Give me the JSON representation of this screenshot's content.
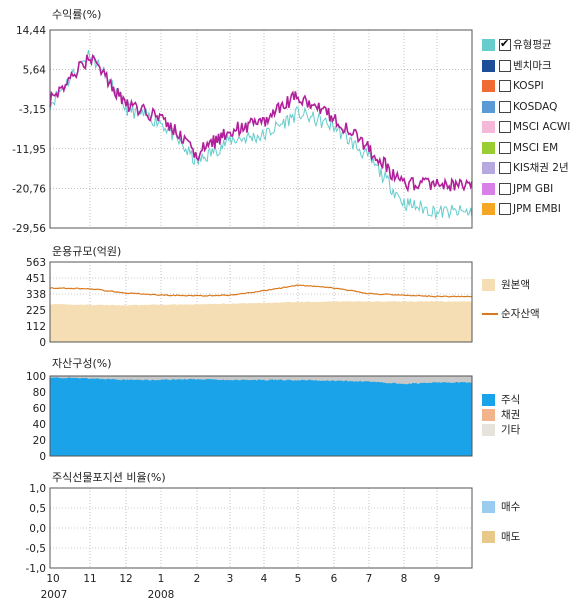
{
  "panel1": {
    "title": "수익률(%)",
    "yticks": [
      "14,44",
      "5,64",
      "-3,15",
      "-11,95",
      "-20,76",
      "-29,56"
    ]
  },
  "panel2": {
    "title": "운용규모(억원)",
    "yticks": [
      "563",
      "451",
      "338",
      "225",
      "112",
      "0"
    ]
  },
  "panel3": {
    "title": "자산구성(%)",
    "yticks": [
      "100",
      "80",
      "60",
      "40",
      "20",
      "0"
    ]
  },
  "panel4": {
    "title": "주식선물포지션 비율(%)",
    "yticks": [
      "1,0",
      "0,5",
      "0,0",
      "-0,5",
      "-1,0"
    ]
  },
  "xaxis": {
    "month_labels": [
      "10",
      "11",
      "12",
      "1",
      "2",
      "3",
      "4",
      "5",
      "6",
      "7",
      "8",
      "9"
    ],
    "year_labels": [
      "2007",
      "2008"
    ]
  },
  "legend1": [
    {
      "label": "유형평균",
      "color": "#66cccc",
      "checked": true
    },
    {
      "label": "벤치마크",
      "color": "#1f4e99",
      "checked": false
    },
    {
      "label": "KOSPI",
      "color": "#f06a33",
      "checked": false
    },
    {
      "label": "KOSDAQ",
      "color": "#5b9bd5",
      "checked": false
    },
    {
      "label": "MSCI ACWI",
      "color": "#f4b8d8",
      "checked": false
    },
    {
      "label": "MSCI EM",
      "color": "#9acd32",
      "checked": false
    },
    {
      "label": "KIS채권 2년",
      "color": "#b8a8e0",
      "checked": false
    },
    {
      "label": "JPM GBI",
      "color": "#d97fe8",
      "checked": false
    },
    {
      "label": "JPM EMBI",
      "color": "#f5a623",
      "checked": false
    }
  ],
  "legend2": [
    {
      "label": "원본액",
      "color": "#f5deb3",
      "kind": "box"
    },
    {
      "label": "순자산액",
      "color": "#d97a1e",
      "kind": "line"
    }
  ],
  "legend3": [
    {
      "label": "주식",
      "color": "#1aa3e8"
    },
    {
      "label": "채권",
      "color": "#f2b48a"
    },
    {
      "label": "기타",
      "color": "#e6e2dc"
    }
  ],
  "legend4": [
    {
      "label": "매수",
      "color": "#99ccee"
    },
    {
      "label": "매도",
      "color": "#e8c98a"
    }
  ],
  "chart_data": [
    {
      "type": "line",
      "title": "수익률(%)",
      "ylim": [
        -29.56,
        14.44
      ],
      "x": [
        "2007-10",
        "2007-11",
        "2007-12",
        "2008-01",
        "2008-02",
        "2008-03",
        "2008-04",
        "2008-05",
        "2008-06",
        "2008-07",
        "2008-08",
        "2008-09"
      ],
      "series": [
        {
          "name": "유형평균",
          "color": "#66cccc",
          "values": [
            -2,
            9.5,
            -3,
            -6,
            -15,
            -10,
            -9,
            -4,
            -7,
            -14,
            -24,
            -26
          ]
        },
        {
          "color": "#b0209a",
          "values": [
            -1,
            8.5,
            -2,
            -5,
            -13,
            -8,
            -6,
            0,
            -5,
            -12,
            -20,
            -20
          ]
        }
      ]
    },
    {
      "type": "area",
      "title": "운용규모(억원)",
      "ylim": [
        0,
        563
      ],
      "x": [
        "2007-10",
        "2007-11",
        "2007-12",
        "2008-01",
        "2008-02",
        "2008-03",
        "2008-04",
        "2008-05",
        "2008-06",
        "2008-07",
        "2008-08",
        "2008-09"
      ],
      "series": [
        {
          "name": "원본액",
          "color": "#f5deb3",
          "kind": "area",
          "values": [
            265,
            262,
            258,
            263,
            265,
            270,
            275,
            282,
            285,
            285,
            285,
            285
          ]
        },
        {
          "name": "순자산액",
          "color": "#d97a1e",
          "kind": "line",
          "values": [
            380,
            375,
            345,
            330,
            325,
            330,
            360,
            400,
            380,
            340,
            330,
            320
          ]
        }
      ]
    },
    {
      "type": "area",
      "title": "자산구성(%)",
      "ylim": [
        0,
        100
      ],
      "x": [
        "2007-10",
        "2007-11",
        "2007-12",
        "2008-01",
        "2008-02",
        "2008-03",
        "2008-04",
        "2008-05",
        "2008-06",
        "2008-07",
        "2008-08",
        "2008-09"
      ],
      "series": [
        {
          "name": "주식",
          "color": "#1aa3e8",
          "values": [
            98,
            97,
            95,
            95,
            96,
            95,
            95,
            95,
            94,
            93,
            90,
            92
          ]
        },
        {
          "name": "기타",
          "color": "#c8c8c8",
          "values": [
            2,
            3,
            5,
            5,
            4,
            5,
            5,
            5,
            6,
            7,
            10,
            8
          ]
        }
      ]
    },
    {
      "type": "area",
      "title": "주식선물포지션 비율(%)",
      "ylim": [
        -1.0,
        1.0
      ],
      "x": [
        "2007-10",
        "2007-11",
        "2007-12",
        "2008-01",
        "2008-02",
        "2008-03",
        "2008-04",
        "2008-05",
        "2008-06",
        "2008-07",
        "2008-08",
        "2008-09"
      ],
      "series": []
    }
  ]
}
